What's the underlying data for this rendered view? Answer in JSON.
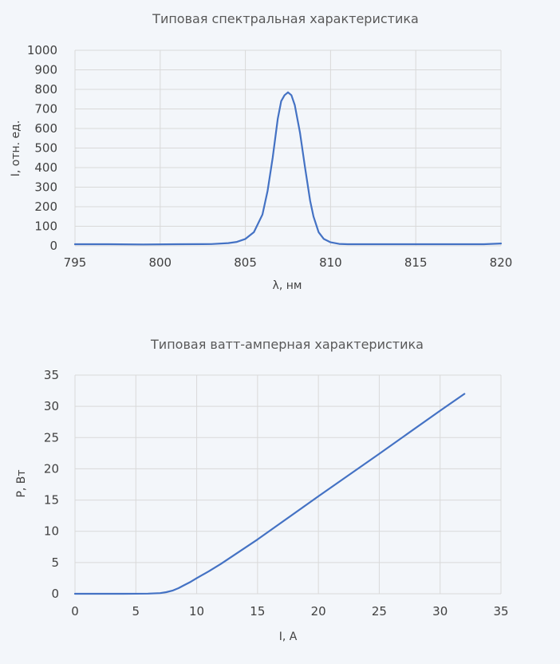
{
  "chart_data": [
    {
      "type": "line",
      "title": "Типовая спектральная характеристика",
      "xlabel": "λ, нм",
      "ylabel": "I, отн. ед.",
      "xlim": [
        795,
        820
      ],
      "ylim": [
        0,
        1000
      ],
      "xticks": [
        795,
        800,
        805,
        810,
        815,
        820
      ],
      "yticks": [
        0,
        100,
        200,
        300,
        400,
        500,
        600,
        700,
        800,
        900,
        1000
      ],
      "grid": true,
      "series": [
        {
          "color": "#4472c4",
          "x": [
            795,
            797,
            799,
            801,
            803,
            804,
            804.5,
            805,
            805.5,
            806,
            806.3,
            806.6,
            806.9,
            807.1,
            807.3,
            807.5,
            807.7,
            807.9,
            808.2,
            808.5,
            808.8,
            809,
            809.3,
            809.6,
            810,
            810.5,
            811,
            813,
            815,
            817,
            819,
            820
          ],
          "y": [
            8,
            8,
            7,
            8,
            9,
            14,
            20,
            35,
            70,
            160,
            280,
            450,
            650,
            740,
            770,
            785,
            770,
            720,
            580,
            400,
            230,
            150,
            70,
            35,
            18,
            10,
            8,
            8,
            8,
            8,
            8,
            12
          ]
        }
      ]
    },
    {
      "type": "line",
      "title": "Типовая ватт-амперная характеристика",
      "xlabel": "I, А",
      "ylabel": "P, Вт",
      "xlim": [
        0,
        35
      ],
      "ylim": [
        0,
        35
      ],
      "xticks": [
        0,
        5,
        10,
        15,
        20,
        25,
        30,
        35
      ],
      "yticks": [
        0,
        5,
        10,
        15,
        20,
        25,
        30,
        35
      ],
      "grid": true,
      "series": [
        {
          "color": "#4472c4",
          "x": [
            0,
            4,
            6,
            7,
            7.5,
            8,
            8.5,
            9,
            9.5,
            10,
            11,
            12,
            15,
            20,
            25,
            30,
            32
          ],
          "y": [
            0,
            0,
            0.02,
            0.1,
            0.25,
            0.5,
            0.9,
            1.4,
            1.9,
            2.5,
            3.6,
            4.8,
            8.7,
            15.6,
            22.4,
            29.3,
            32
          ]
        }
      ]
    }
  ]
}
